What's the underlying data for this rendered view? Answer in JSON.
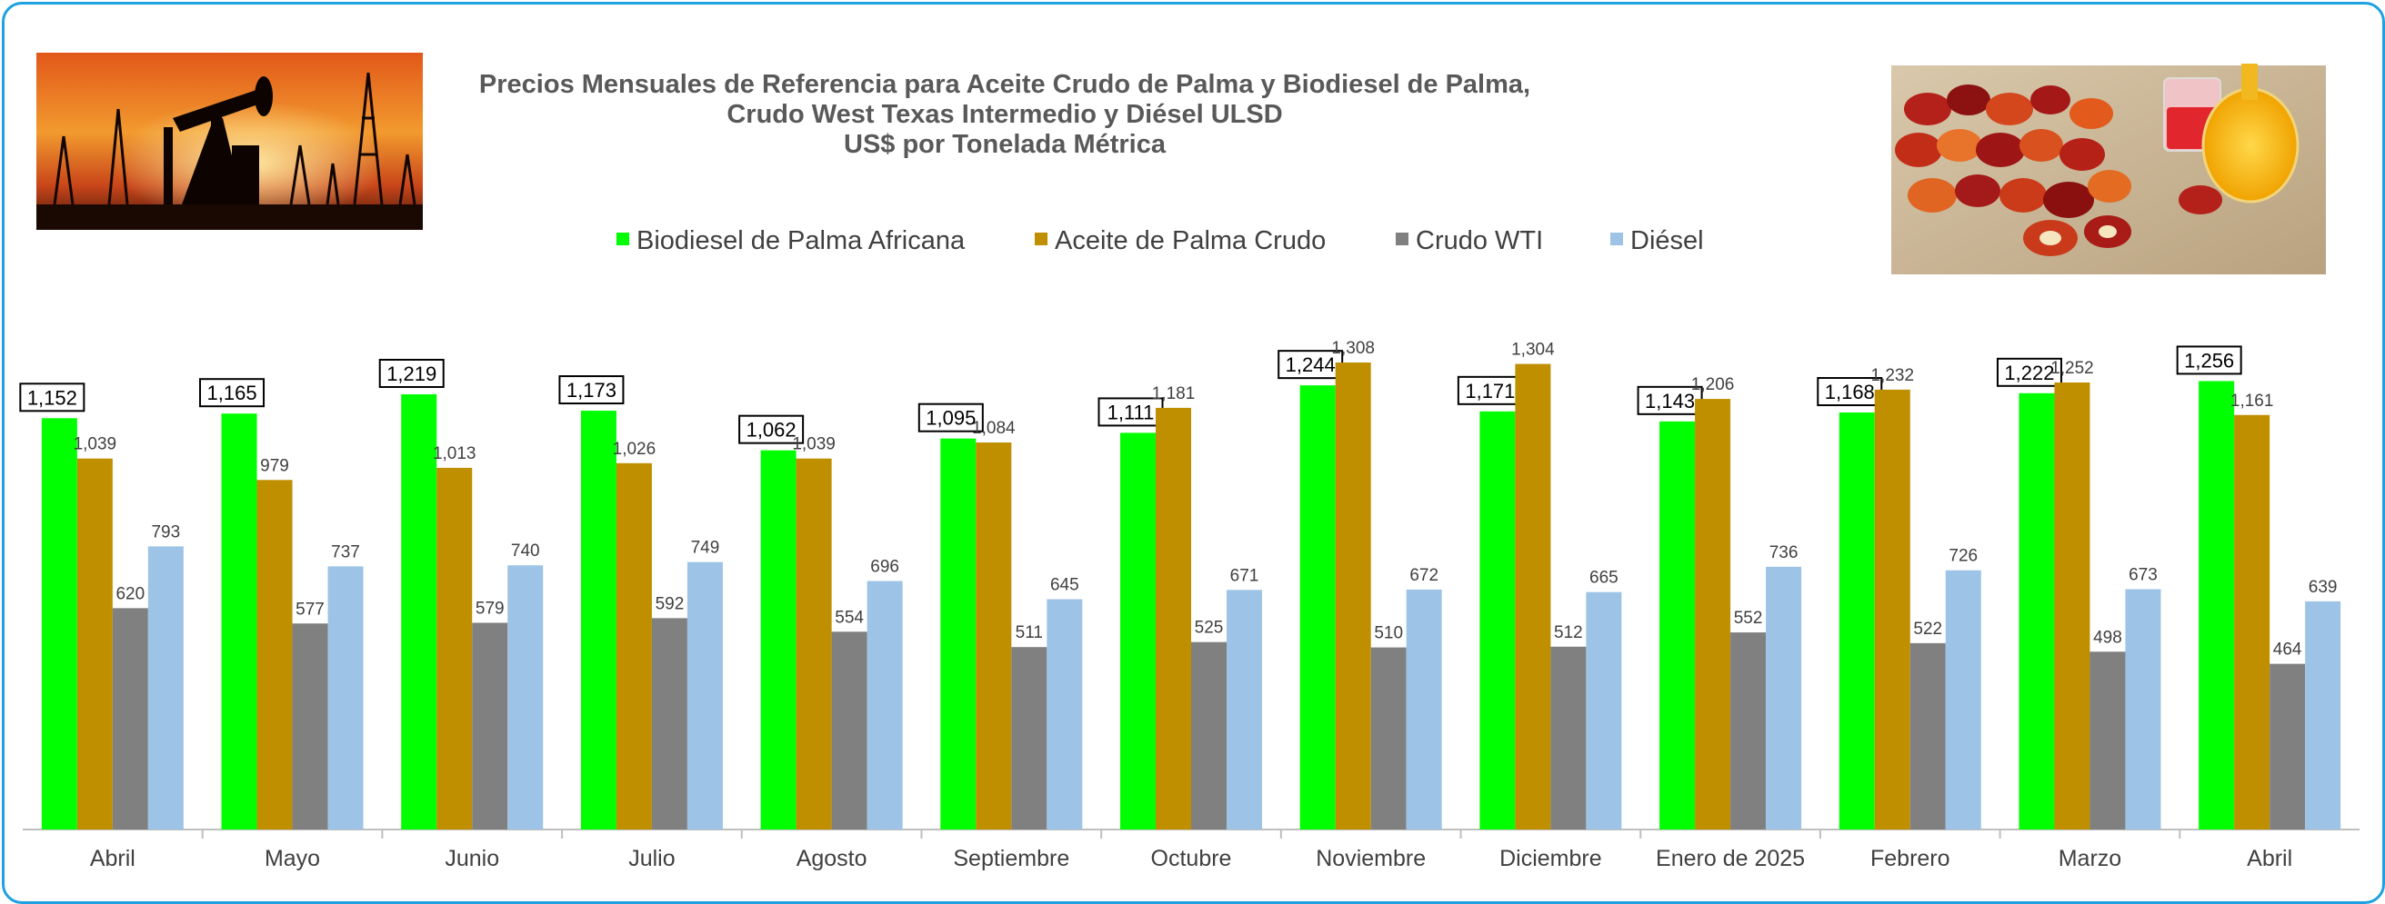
{
  "colors": {
    "frame": "#1fa0e0",
    "biodiesel": "#00ff00",
    "palma": "#bf8f00",
    "wti": "#808080",
    "diesel": "#9dc3e6"
  },
  "images": {
    "left": "oil-pumpjack-sunset",
    "right": "palm-fruits-and-oil"
  },
  "chart_data": {
    "type": "bar",
    "title": "Precios Mensuales de Referencia para Aceite Crudo de Palma y Biodiesel de Palma,",
    "subtitle": "Crudo West Texas Intermedio y Diésel ULSD",
    "unit_line": "US$ por Tonelada Métrica",
    "categories": [
      "Abril",
      "Mayo",
      "Junio",
      "Julio",
      "Agosto",
      "Septiembre",
      "Octubre",
      "Noviembre",
      "Diciembre",
      "Enero de 2025",
      "Febrero",
      "Marzo",
      "Abril"
    ],
    "series": [
      {
        "name": "Biodiesel de Palma Africana",
        "values": [
          1152,
          1165,
          1219,
          1173,
          1062,
          1095,
          1111,
          1244,
          1171,
          1143,
          1168,
          1222,
          1256
        ],
        "labels": [
          "1,152",
          "1,165",
          "1,219",
          "1,173",
          "1,062",
          "1,095",
          "1,111",
          "1,244",
          "1,171",
          "1,143",
          "1,168",
          "1,222",
          "1,256"
        ]
      },
      {
        "name": "Aceite de Palma Crudo",
        "values": [
          1039,
          979,
          1013,
          1026,
          1039,
          1084,
          1181,
          1308,
          1304,
          1206,
          1232,
          1252,
          1161
        ],
        "labels": [
          "1,039",
          "979",
          "1,013",
          "1,026",
          "1,039",
          "1,084",
          "1,181",
          "1,308",
          "1,304",
          "1,206",
          "1,232",
          "1,252",
          "1,161"
        ]
      },
      {
        "name": "Crudo WTI",
        "values": [
          620,
          577,
          579,
          592,
          554,
          511,
          525,
          510,
          512,
          552,
          522,
          498,
          464
        ],
        "labels": [
          "620",
          "577",
          "579",
          "592",
          "554",
          "511",
          "525",
          "510",
          "512",
          "552",
          "522",
          "498",
          "464"
        ]
      },
      {
        "name": "Diésel",
        "values": [
          793,
          737,
          740,
          749,
          696,
          645,
          671,
          672,
          665,
          736,
          726,
          673,
          639
        ],
        "labels": [
          "793",
          "737",
          "740",
          "749",
          "696",
          "645",
          "671",
          "672",
          "665",
          "736",
          "726",
          "673",
          "639"
        ]
      }
    ],
    "ylim": [
      0,
      1360
    ],
    "grid": false,
    "legend_position": "top"
  }
}
